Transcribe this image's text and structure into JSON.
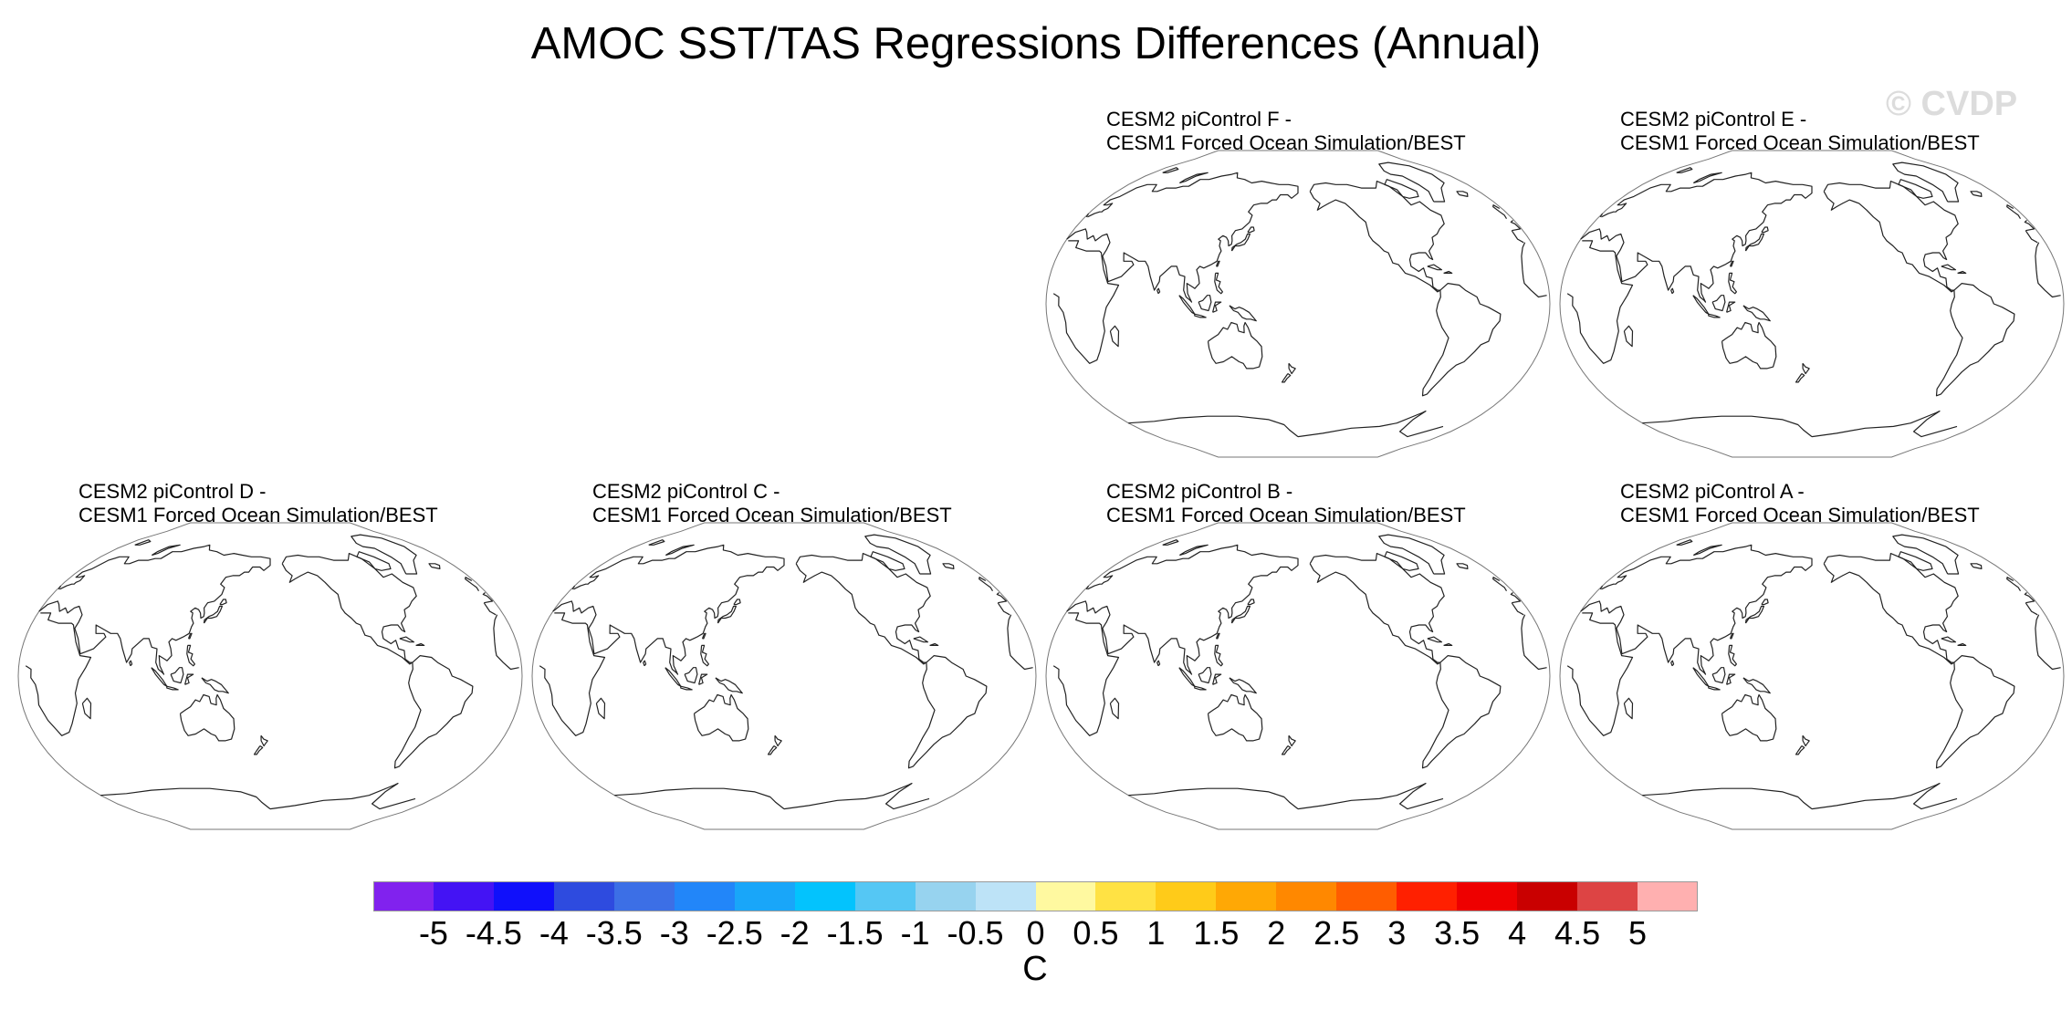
{
  "title": "AMOC SST/TAS Regressions Differences (Annual)",
  "watermark": "© CVDP",
  "panels": [
    {
      "line1": "CESM2 piControl F -",
      "line2": "CESM1 Forced Ocean Simulation/BEST"
    },
    {
      "line1": "CESM2 piControl E -",
      "line2": "CESM1 Forced Ocean Simulation/BEST"
    },
    {
      "line1": "CESM2 piControl D -",
      "line2": "CESM1 Forced Ocean Simulation/BEST"
    },
    {
      "line1": "CESM2 piControl C -",
      "line2": "CESM1 Forced Ocean Simulation/BEST"
    },
    {
      "line1": "CESM2 piControl B -",
      "line2": "CESM1 Forced Ocean Simulation/BEST"
    },
    {
      "line1": "CESM2 piControl A -",
      "line2": "CESM1 Forced Ocean Simulation/BEST"
    }
  ],
  "colorbar": {
    "colors": [
      "#8122ee",
      "#4413f4",
      "#1010fb",
      "#2e4bdf",
      "#3c6fe6",
      "#2286f9",
      "#19a6f9",
      "#03c3fd",
      "#55c7f4",
      "#97d3ef",
      "#bde3f7",
      "#fff9a0",
      "#ffe244",
      "#ffcb19",
      "#ffa805",
      "#ff8800",
      "#ff5d00",
      "#ff2000",
      "#ee0000",
      "#c90000",
      "#dd4444",
      "#ffb0b0"
    ],
    "tick_labels": [
      "-5",
      "-4.5",
      "-4",
      "-3.5",
      "-3",
      "-2.5",
      "-2",
      "-1.5",
      "-1",
      "-0.5",
      "0",
      "0.5",
      "1",
      "1.5",
      "2",
      "2.5",
      "3",
      "3.5",
      "4",
      "4.5",
      "5"
    ],
    "units": "C"
  }
}
